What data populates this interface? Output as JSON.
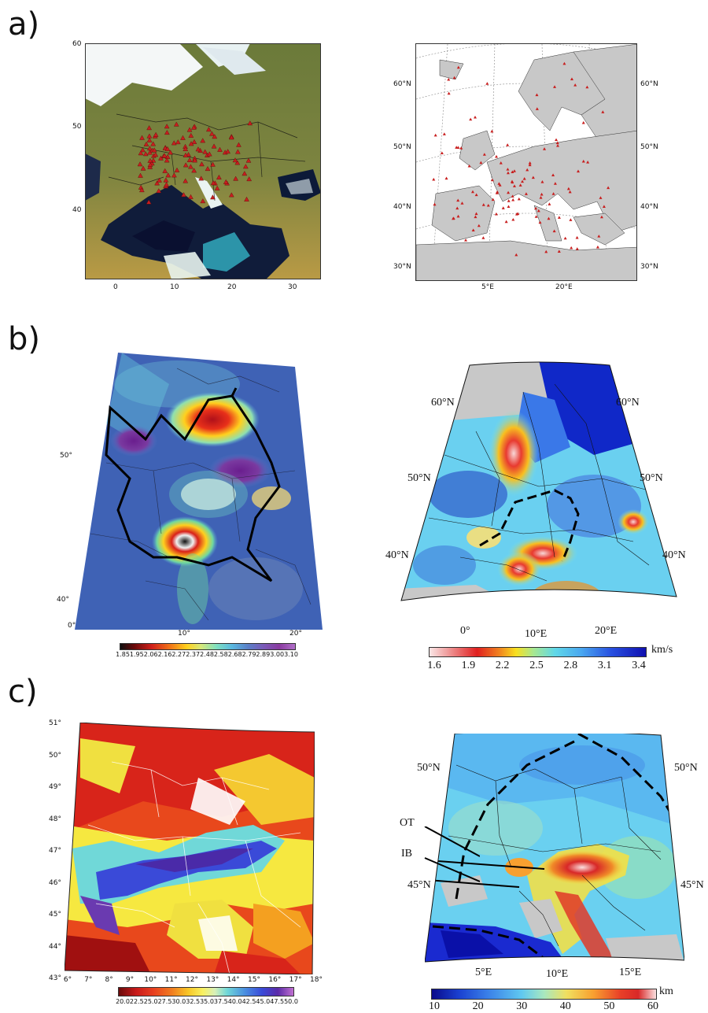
{
  "panels": {
    "a": {
      "label": "a)"
    },
    "b": {
      "label": "b)"
    },
    "c": {
      "label": "c)"
    }
  },
  "a_left": {
    "y_ticks": [
      "60",
      "50",
      "40"
    ],
    "x_ticks": [
      "0",
      "10",
      "20",
      "30"
    ]
  },
  "a_right": {
    "lat_left": [
      "60°N",
      "50°N",
      "40°N",
      "30°N"
    ],
    "lat_right": [
      "60°N",
      "50°N",
      "40°N",
      "30°N"
    ],
    "lon": [
      "5°E",
      "20°E"
    ]
  },
  "b_left": {
    "lat": [
      "50°",
      "40°"
    ],
    "lon": [
      "0°",
      "10°",
      "20°"
    ],
    "colorbar": [
      "1.85",
      "1.95",
      "2.06",
      "2.16",
      "2.27",
      "2.37",
      "2.48",
      "2.58",
      "2.68",
      "2.79",
      "2.89",
      "3.00",
      "3.10"
    ]
  },
  "b_right": {
    "lat_left": [
      "60°N",
      "50°N",
      "40°N"
    ],
    "lat_right": [
      "60°N",
      "50°N",
      "40°N"
    ],
    "lon": [
      "0°",
      "10°E",
      "20°E"
    ],
    "colorbar": [
      "1.6",
      "1.9",
      "2.2",
      "2.5",
      "2.8",
      "3.1",
      "3.4"
    ],
    "unit": "km/s"
  },
  "c_left": {
    "lat": [
      "51°",
      "50°",
      "49°",
      "48°",
      "47°",
      "46°",
      "45°",
      "44°",
      "43°"
    ],
    "lon": [
      "6°",
      "7°",
      "8°",
      "9°",
      "10°",
      "11°",
      "12°",
      "13°",
      "14°",
      "15°",
      "16°",
      "17°",
      "18°"
    ],
    "colorbar": [
      "20.0",
      "22.5",
      "25.0",
      "27.5",
      "30.0",
      "32.5",
      "35.0",
      "37.5",
      "40.0",
      "42.5",
      "45.0",
      "47.5",
      "50.0"
    ]
  },
  "c_right": {
    "lat_left": [
      "50°N",
      "45°N"
    ],
    "lat_right": [
      "50°N",
      "45°N"
    ],
    "lon": [
      "5°E",
      "10°E",
      "15°E"
    ],
    "labels": {
      "ot": "OT",
      "ib": "IB"
    },
    "colorbar": [
      "10",
      "20",
      "30",
      "40",
      "50",
      "60"
    ],
    "unit": "km"
  },
  "colors": {
    "station": "#c81e1e",
    "land_gray": "#c8c8c8",
    "boundary": "#000000"
  }
}
